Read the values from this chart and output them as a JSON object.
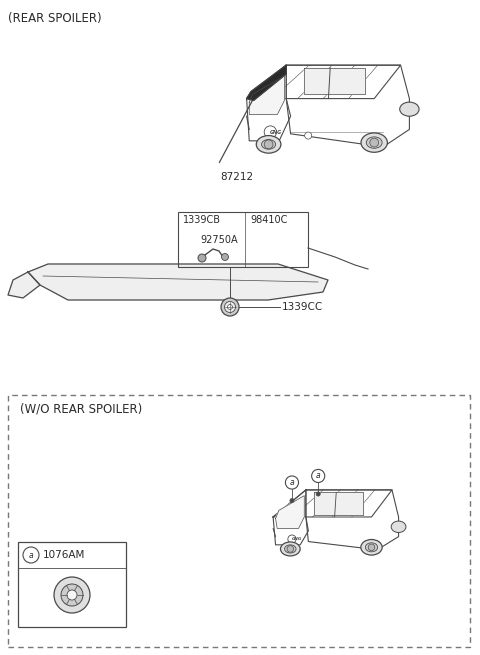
{
  "title_top": "(REAR SPOILER)",
  "title_bottom_box": "(W/O REAR SPOILER)",
  "bg_color": "#ffffff",
  "line_color": "#4a4a4a",
  "text_color": "#2a2a2a",
  "label_87212": "87212",
  "label_1339CB": "1339CB",
  "label_98410C": "98410C",
  "label_92750A": "92750A",
  "label_1339CC": "1339CC",
  "label_1076AM": "1076AM"
}
